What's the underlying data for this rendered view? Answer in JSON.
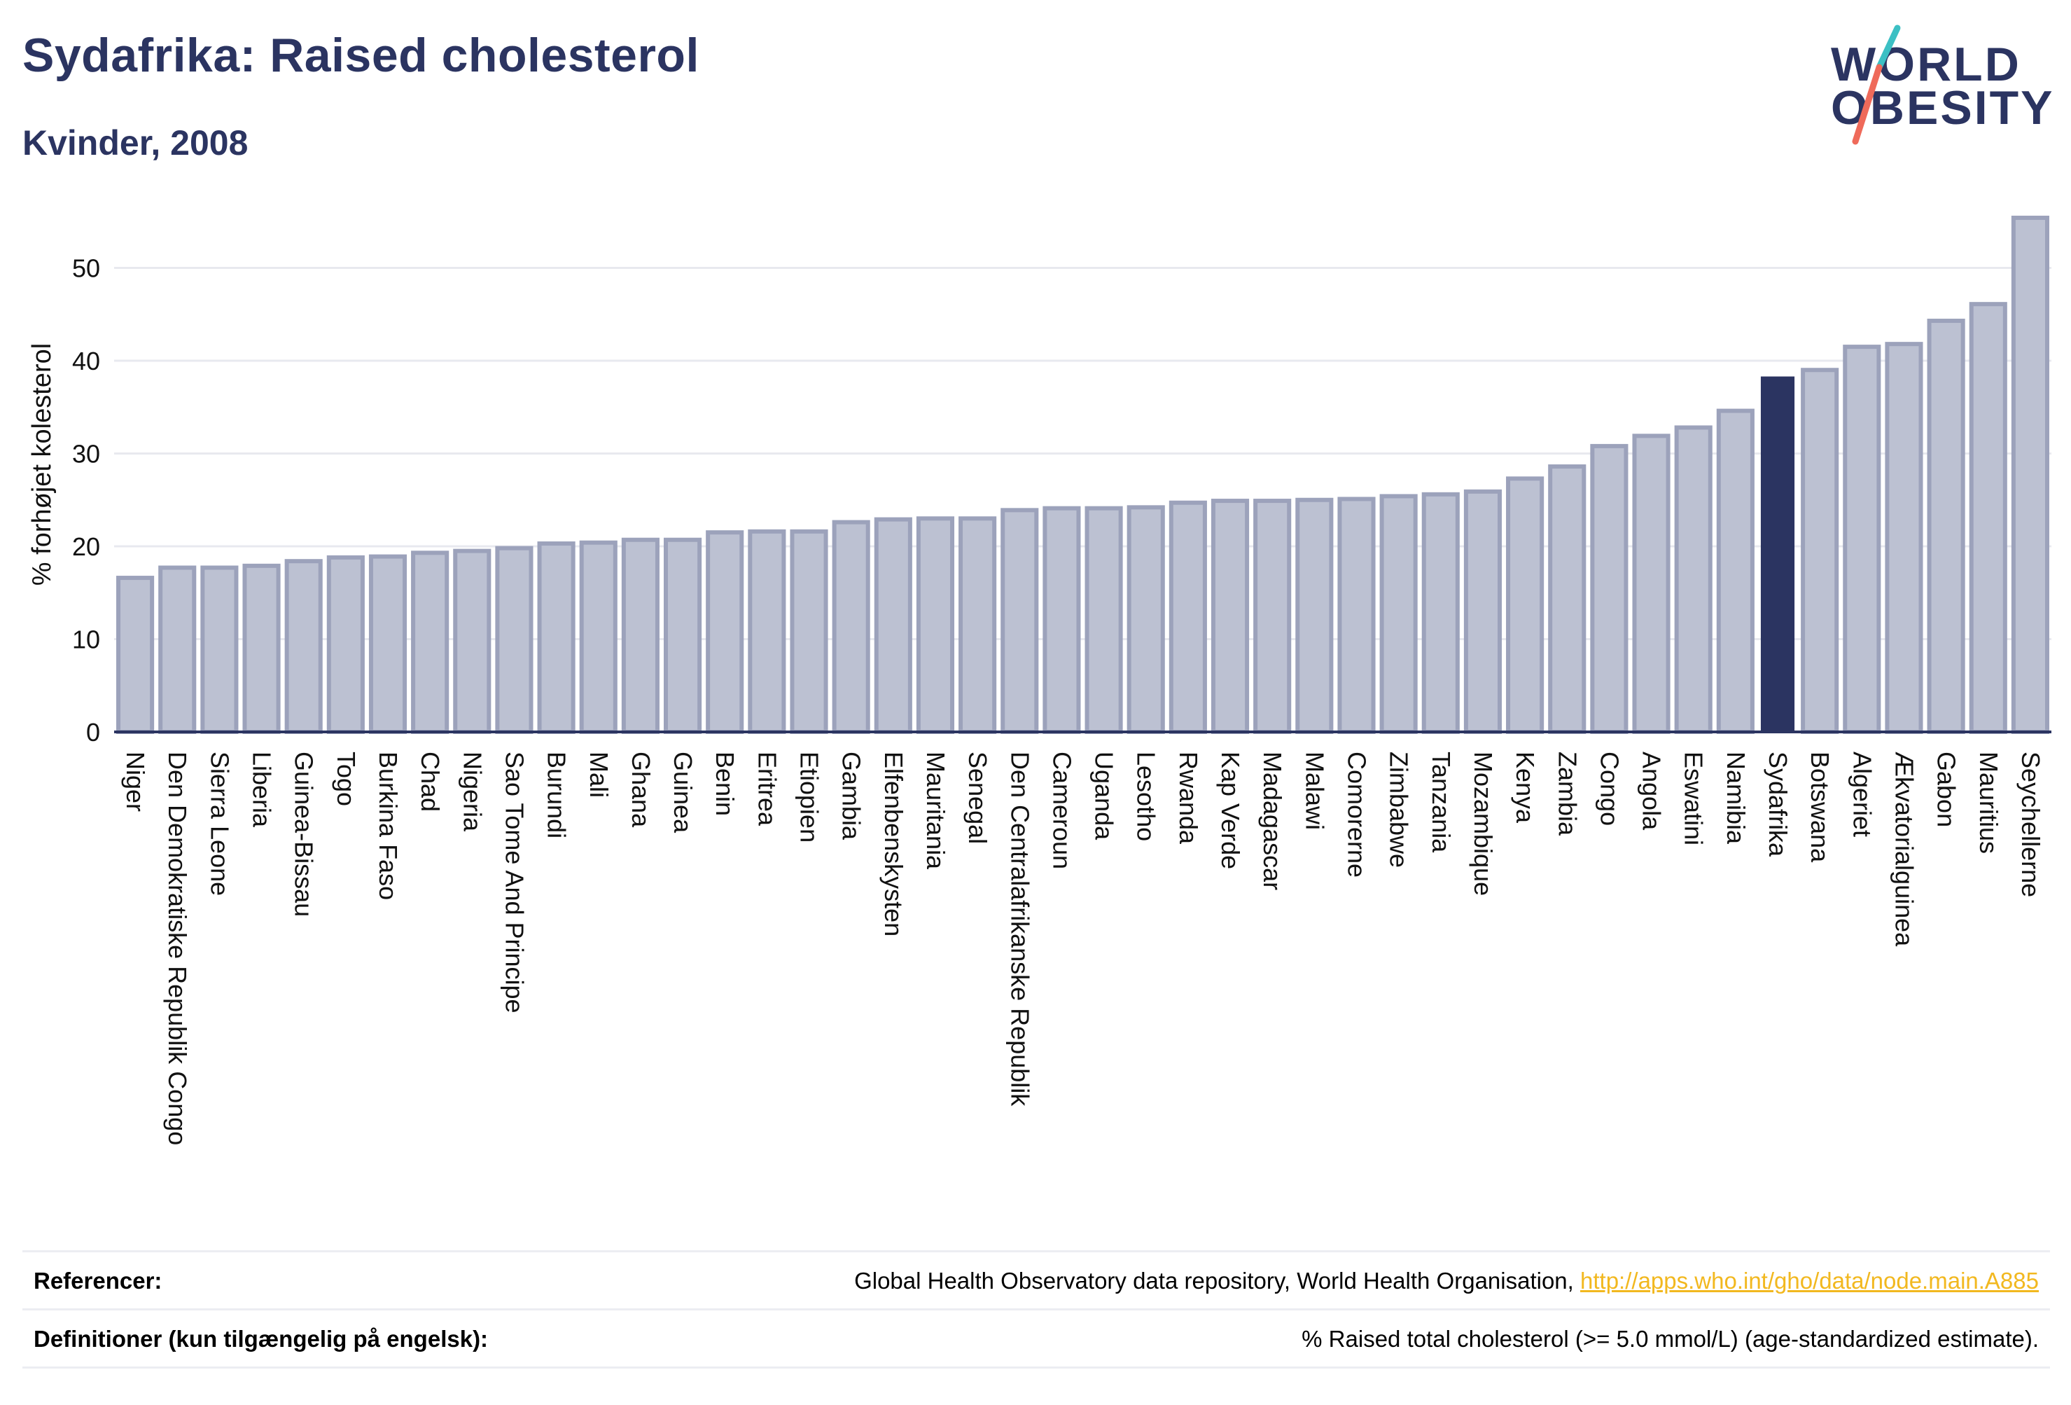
{
  "header": {
    "title": "Sydafrika: Raised cholesterol",
    "subtitle": "Kvinder, 2008"
  },
  "logo": {
    "line1": "WORLD",
    "line2": "OBESITY",
    "colors": {
      "text": "#2b3461",
      "slash_top": "#3cc0c4",
      "slash_bottom": "#ef6a5a"
    }
  },
  "colors": {
    "bar": "#bcc1d2",
    "bar_border": "#9ca2bb",
    "highlight": "#2b3461",
    "grid": "#e8e9ef",
    "axis": "#2b3461",
    "link": "#f2b81f"
  },
  "chart_data": {
    "type": "bar",
    "title": "Sydafrika: Raised cholesterol",
    "subtitle": "Kvinder, 2008",
    "xlabel": "",
    "ylabel": "% forhøjet kolesterol",
    "ylim": [
      0,
      56
    ],
    "yticks": [
      0,
      10,
      20,
      30,
      40,
      50
    ],
    "grid": true,
    "highlight": "Sydafrika",
    "categories": [
      "Niger",
      "Den Demokratiske Republik Congo",
      "Sierra Leone",
      "Liberia",
      "Guinea-Bissau",
      "Togo",
      "Burkina Faso",
      "Chad",
      "Nigeria",
      "Sao Tome And Principe",
      "Burundi",
      "Mali",
      "Ghana",
      "Guinea",
      "Benin",
      "Eritrea",
      "Etiopien",
      "Gambia",
      "Elfenbenskysten",
      "Mauritania",
      "Senegal",
      "Den Centralafrikanske Republik",
      "Cameroun",
      "Uganda",
      "Lesotho",
      "Rwanda",
      "Kap Verde",
      "Madagascar",
      "Malawi",
      "Comorerne",
      "Zimbabwe",
      "Tanzania",
      "Mozambique",
      "Kenya",
      "Zambia",
      "Congo",
      "Angola",
      "Eswatini",
      "Namibia",
      "Sydafrika",
      "Botswana",
      "Algeriet",
      "Ækvatorialguinea",
      "Gabon",
      "Mauritius",
      "Seychellerne"
    ],
    "values": [
      16.6,
      17.7,
      17.7,
      17.9,
      18.4,
      18.8,
      18.9,
      19.3,
      19.5,
      19.8,
      20.3,
      20.4,
      20.7,
      20.7,
      21.5,
      21.6,
      21.6,
      22.6,
      22.9,
      23.0,
      23.0,
      23.9,
      24.1,
      24.1,
      24.2,
      24.7,
      24.9,
      24.9,
      25.0,
      25.1,
      25.4,
      25.6,
      25.9,
      27.3,
      28.6,
      30.8,
      31.9,
      32.8,
      34.6,
      38.3,
      39.0,
      41.5,
      41.8,
      44.3,
      46.1,
      55.4
    ]
  },
  "footer": {
    "references_label": "Referencer:",
    "references_text": "Global Health Observatory data repository, World Health Organisation, ",
    "references_link": "http://apps.who.int/gho/data/node.main.A885",
    "definitions_label": "Definitioner (kun tilgængelig på engelsk):",
    "definitions_text": "% Raised total cholesterol (>= 5.0 mmol/L) (age-standardized estimate)."
  }
}
